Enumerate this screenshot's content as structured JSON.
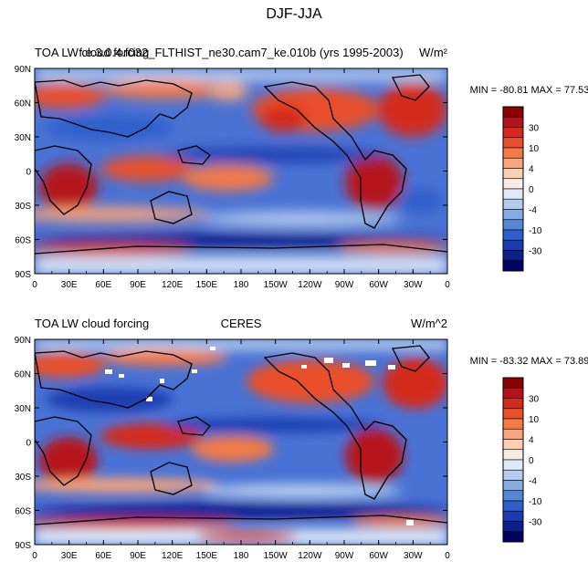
{
  "figure": {
    "title": "DJF-JJA"
  },
  "panels": [
    {
      "left_title": "TOA LW cloud forcing",
      "center_title": "f.e.3.0.4.f032_FLTHIST_ne30.cam7_ke.010b (yrs 1995-2003)",
      "units": "W/m²",
      "stats": "MIN = -80.81 MAX =  77.53"
    },
    {
      "left_title": "TOA LW cloud forcing",
      "center_title": "CERES",
      "units": "W/m^2",
      "stats": "MIN = -83.32 MAX =  73.89"
    }
  ],
  "axes": {
    "lat_labels": [
      "90N",
      "60N",
      "30N",
      "0",
      "30S",
      "60S",
      "90S"
    ],
    "lon_labels": [
      "0",
      "30E",
      "60E",
      "90E",
      "120E",
      "150E",
      "180",
      "150W",
      "120W",
      "90W",
      "60W",
      "30W",
      "0"
    ]
  },
  "colorbar": {
    "labels": [
      "30",
      "10",
      "4",
      "0",
      "-4",
      "-10",
      "-30"
    ],
    "colors": [
      "#8b0000",
      "#b5121b",
      "#d42a1e",
      "#e8502b",
      "#f47a47",
      "#f9a57c",
      "#fcd0b5",
      "#f7ebe3",
      "#dde9f7",
      "#b4cdee",
      "#84abe2",
      "#5686d6",
      "#2f5fcb",
      "#1a3cb0",
      "#0d1f8a",
      "#000060"
    ]
  }
}
